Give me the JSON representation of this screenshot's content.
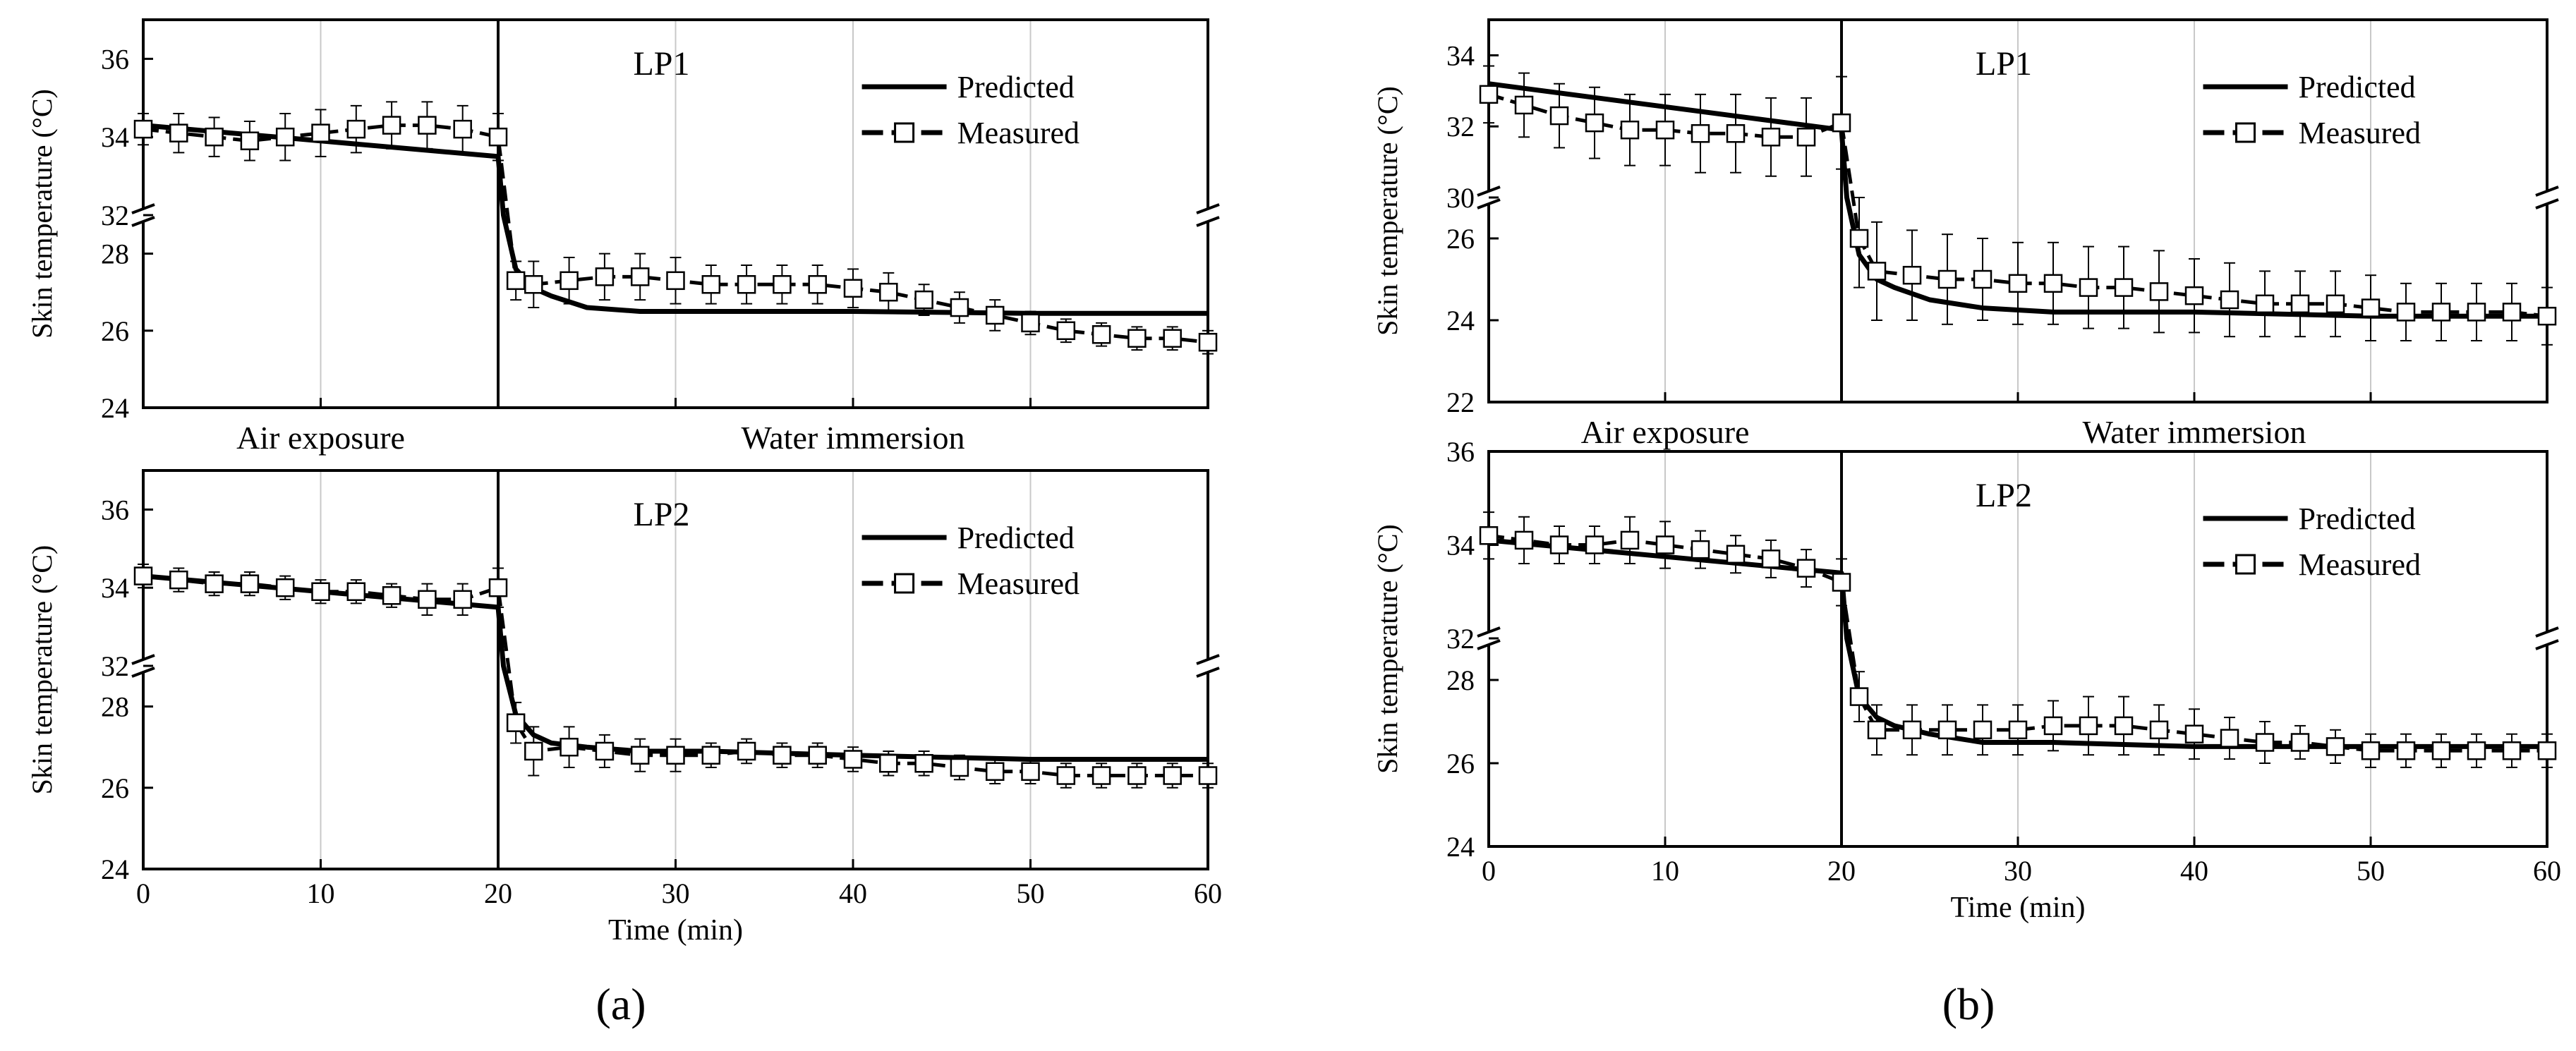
{
  "figure_labels": [
    "(a)",
    "(b)"
  ],
  "legend": {
    "predicted": "Predicted",
    "measured": "Measured"
  },
  "phase_labels": {
    "air": "Air exposure",
    "water": "Water immersion"
  },
  "colors": {
    "axis": "#000000",
    "grid": "#c8c8c8",
    "line": "#000000",
    "marker_fill": "#ffffff"
  },
  "chart_data": [
    {
      "id": "a-LP1",
      "type": "line",
      "title": "LP1",
      "xlabel": "",
      "ylabel": "Skin  temperature (°C)",
      "xlim": [
        0,
        60
      ],
      "x_ticks": [
        0,
        10,
        20,
        30,
        40,
        50,
        60
      ],
      "x_tick_labels_shown": false,
      "y_upper_range": [
        32,
        37
      ],
      "y_upper_ticks": [
        32,
        34,
        36
      ],
      "y_lower_range": [
        24,
        29
      ],
      "y_lower_ticks": [
        24,
        26,
        28
      ],
      "phase_divider_x": 20,
      "grid_x": [
        10,
        30,
        40,
        50
      ],
      "show_phase_labels": true,
      "series": [
        {
          "name": "Predicted",
          "style": "solid",
          "x": [
            0,
            20,
            20.3,
            21,
            22,
            23,
            25,
            28,
            32,
            40,
            50,
            60
          ],
          "y": [
            34.3,
            33.5,
            31.4,
            27.6,
            27.1,
            26.9,
            26.6,
            26.5,
            26.5,
            26.5,
            26.45,
            26.45
          ]
        },
        {
          "name": "Measured",
          "style": "dashed-markers",
          "x": [
            0,
            2,
            4,
            6,
            8,
            10,
            12,
            14,
            16,
            18,
            20,
            21,
            22,
            24,
            26,
            28,
            30,
            32,
            34,
            36,
            38,
            40,
            42,
            44,
            46,
            48,
            50,
            52,
            54,
            56,
            58,
            60
          ],
          "y": [
            34.2,
            34.1,
            34.0,
            33.9,
            34.0,
            34.1,
            34.2,
            34.3,
            34.3,
            34.2,
            34.0,
            27.3,
            27.2,
            27.3,
            27.4,
            27.4,
            27.3,
            27.2,
            27.2,
            27.2,
            27.2,
            27.1,
            27.0,
            26.8,
            26.6,
            26.4,
            26.2,
            26.0,
            25.9,
            25.8,
            25.8,
            25.7
          ],
          "err": [
            0.4,
            0.5,
            0.5,
            0.5,
            0.6,
            0.6,
            0.6,
            0.6,
            0.6,
            0.6,
            0.6,
            0.5,
            0.6,
            0.6,
            0.6,
            0.6,
            0.6,
            0.5,
            0.5,
            0.5,
            0.5,
            0.5,
            0.5,
            0.4,
            0.4,
            0.4,
            0.3,
            0.3,
            0.3,
            0.3,
            0.3,
            0.3
          ]
        }
      ]
    },
    {
      "id": "a-LP2",
      "type": "line",
      "title": "LP2",
      "xlabel": "Time (min)",
      "ylabel": "Skin  temperature (°C)",
      "xlim": [
        0,
        60
      ],
      "x_ticks": [
        0,
        10,
        20,
        30,
        40,
        50,
        60
      ],
      "x_tick_labels_shown": true,
      "y_upper_range": [
        32,
        37
      ],
      "y_upper_ticks": [
        32,
        34,
        36
      ],
      "y_lower_range": [
        24,
        29
      ],
      "y_lower_ticks": [
        24,
        26,
        28
      ],
      "phase_divider_x": 20,
      "grid_x": [
        10,
        30,
        40,
        50
      ],
      "show_phase_labels": false,
      "series": [
        {
          "name": "Predicted",
          "style": "solid",
          "x": [
            0,
            20,
            20.3,
            21,
            22,
            23,
            25,
            28,
            32,
            40,
            50,
            60
          ],
          "y": [
            34.3,
            33.5,
            31.4,
            27.8,
            27.3,
            27.1,
            27.0,
            26.9,
            26.9,
            26.8,
            26.7,
            26.7
          ]
        },
        {
          "name": "Measured",
          "style": "dashed-markers",
          "x": [
            0,
            2,
            4,
            6,
            8,
            10,
            12,
            14,
            16,
            18,
            20,
            21,
            22,
            24,
            26,
            28,
            30,
            32,
            34,
            36,
            38,
            40,
            42,
            44,
            46,
            48,
            50,
            52,
            54,
            56,
            58,
            60
          ],
          "y": [
            34.3,
            34.2,
            34.1,
            34.1,
            34.0,
            33.9,
            33.9,
            33.8,
            33.7,
            33.7,
            34.0,
            27.6,
            26.9,
            27.0,
            26.9,
            26.8,
            26.8,
            26.8,
            26.9,
            26.8,
            26.8,
            26.7,
            26.6,
            26.6,
            26.5,
            26.4,
            26.4,
            26.3,
            26.3,
            26.3,
            26.3,
            26.3
          ],
          "err": [
            0.3,
            0.3,
            0.3,
            0.3,
            0.3,
            0.3,
            0.3,
            0.3,
            0.4,
            0.4,
            0.5,
            0.5,
            0.6,
            0.5,
            0.4,
            0.4,
            0.4,
            0.3,
            0.3,
            0.3,
            0.3,
            0.3,
            0.3,
            0.3,
            0.3,
            0.3,
            0.3,
            0.3,
            0.3,
            0.3,
            0.3,
            0.3
          ]
        }
      ]
    },
    {
      "id": "b-LP1",
      "type": "line",
      "title": "LP1",
      "xlabel": "",
      "ylabel": "Skin  temperature (°C)",
      "xlim": [
        0,
        60
      ],
      "x_ticks": [
        0,
        10,
        20,
        30,
        40,
        50,
        60
      ],
      "x_tick_labels_shown": false,
      "y_upper_range": [
        30,
        35
      ],
      "y_upper_ticks": [
        30,
        32,
        34
      ],
      "y_lower_range": [
        22,
        27
      ],
      "y_lower_ticks": [
        22,
        24,
        26
      ],
      "phase_divider_x": 20,
      "grid_x": [
        10,
        30,
        40,
        50
      ],
      "show_phase_labels": true,
      "series": [
        {
          "name": "Predicted",
          "style": "solid",
          "x": [
            0,
            20,
            20.3,
            21,
            22,
            23,
            25,
            28,
            32,
            40,
            50,
            60
          ],
          "y": [
            33.2,
            31.9,
            29.5,
            25.6,
            25.0,
            24.8,
            24.5,
            24.3,
            24.2,
            24.2,
            24.1,
            24.1
          ]
        },
        {
          "name": "Measured",
          "style": "dashed-markers",
          "x": [
            0,
            2,
            4,
            6,
            8,
            10,
            12,
            14,
            16,
            18,
            20,
            21,
            22,
            24,
            26,
            28,
            30,
            32,
            34,
            36,
            38,
            40,
            42,
            44,
            46,
            48,
            50,
            52,
            54,
            56,
            58,
            60
          ],
          "y": [
            32.9,
            32.6,
            32.3,
            32.1,
            31.9,
            31.9,
            31.8,
            31.8,
            31.7,
            31.7,
            32.1,
            26.0,
            25.2,
            25.1,
            25.0,
            25.0,
            24.9,
            24.9,
            24.8,
            24.8,
            24.7,
            24.6,
            24.5,
            24.4,
            24.4,
            24.4,
            24.3,
            24.2,
            24.2,
            24.2,
            24.2,
            24.1
          ],
          "err": [
            0.8,
            0.9,
            0.9,
            1.0,
            1.0,
            1.0,
            1.1,
            1.1,
            1.1,
            1.1,
            1.3,
            1.2,
            1.2,
            1.1,
            1.1,
            1.0,
            1.0,
            1.0,
            1.0,
            1.0,
            1.0,
            0.9,
            0.9,
            0.8,
            0.8,
            0.8,
            0.8,
            0.7,
            0.7,
            0.7,
            0.7,
            0.7
          ]
        }
      ]
    },
    {
      "id": "b-LP2",
      "type": "line",
      "title": "LP2",
      "xlabel": "Time (min)",
      "ylabel": "Skin  temperature (°C)",
      "xlim": [
        0,
        60
      ],
      "x_ticks": [
        0,
        10,
        20,
        30,
        40,
        50,
        60
      ],
      "x_tick_labels_shown": true,
      "y_upper_range": [
        32,
        36
      ],
      "y_upper_ticks": [
        32,
        34,
        36
      ],
      "y_lower_range": [
        24,
        29
      ],
      "y_lower_ticks": [
        24,
        26,
        28
      ],
      "phase_divider_x": 20,
      "grid_x": [
        10,
        30,
        40,
        50
      ],
      "show_phase_labels": false,
      "series": [
        {
          "name": "Predicted",
          "style": "solid",
          "x": [
            0,
            20,
            20.3,
            21,
            22,
            23,
            25,
            28,
            32,
            40,
            50,
            60
          ],
          "y": [
            34.1,
            33.4,
            31.4,
            27.6,
            27.1,
            26.9,
            26.7,
            26.5,
            26.5,
            26.4,
            26.4,
            26.4
          ]
        },
        {
          "name": "Measured",
          "style": "dashed-markers",
          "x": [
            0,
            2,
            4,
            6,
            8,
            10,
            12,
            14,
            16,
            18,
            20,
            21,
            22,
            24,
            26,
            28,
            30,
            32,
            34,
            36,
            38,
            40,
            42,
            44,
            46,
            48,
            50,
            52,
            54,
            56,
            58,
            60
          ],
          "y": [
            34.2,
            34.1,
            34.0,
            34.0,
            34.1,
            34.0,
            33.9,
            33.8,
            33.7,
            33.5,
            33.2,
            27.6,
            26.8,
            26.8,
            26.8,
            26.8,
            26.8,
            26.9,
            26.9,
            26.9,
            26.8,
            26.7,
            26.6,
            26.5,
            26.5,
            26.4,
            26.3,
            26.3,
            26.3,
            26.3,
            26.3,
            26.3
          ],
          "err": [
            0.5,
            0.5,
            0.4,
            0.4,
            0.5,
            0.5,
            0.4,
            0.4,
            0.4,
            0.4,
            0.5,
            0.6,
            0.6,
            0.6,
            0.6,
            0.6,
            0.6,
            0.6,
            0.7,
            0.7,
            0.6,
            0.6,
            0.5,
            0.5,
            0.4,
            0.4,
            0.4,
            0.4,
            0.4,
            0.4,
            0.4,
            0.4
          ]
        }
      ]
    }
  ]
}
